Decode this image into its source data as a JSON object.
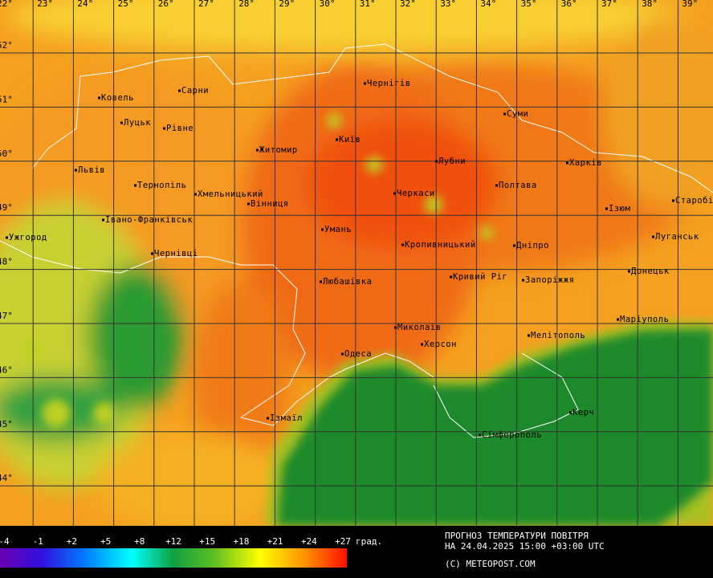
{
  "map": {
    "longitude_labels": [
      "22°",
      "23°",
      "24°",
      "25°",
      "26°",
      "27°",
      "28°",
      "29°",
      "30°",
      "31°",
      "32°",
      "33°",
      "34°",
      "35°",
      "36°",
      "37°",
      "38°",
      "39°"
    ],
    "latitude_labels": [
      "52°",
      "51°",
      "50°",
      "49°",
      "48°",
      "47°",
      "46°",
      "45°",
      "44°"
    ],
    "cities": [
      "Ковель",
      "Сарни",
      "Чернігів",
      "Луцьк",
      "Рівне",
      "Київ",
      "Суми",
      "Житомир",
      "Лубни",
      "Харків",
      "Львів",
      "Тернопіль",
      "Хмельницький",
      "Черкаси",
      "Полтава",
      "Вінниця",
      "Старобільськ",
      "Ізюм",
      "Івано-Франківськ",
      "Ужгород",
      "Умань",
      "Луганськ",
      "Кропивницький",
      "Дніпро",
      "Чернівці",
      "Донецьк",
      "Кривий Ріг",
      "Запоріжжя",
      "Любашівка",
      "Маріуполь",
      "Миколаїв",
      "Мелітополь",
      "Херсон",
      "Одеса",
      "Керч",
      "Ізмаїл",
      "Сімферополь"
    ]
  },
  "legend": {
    "ticks": [
      "-4",
      "-1",
      "+2",
      "+5",
      "+8",
      "+12",
      "+15",
      "+18",
      "+21",
      "+24",
      "+27"
    ],
    "unit": "град."
  },
  "footer": {
    "title": "ПРОГНОЗ ТЕМПЕРАТУРИ ПОВІТРЯ",
    "date": "НА 24.04.2025 15:00 +03:00 UTC",
    "copyright": "(C) METEOPOST.COM"
  }
}
